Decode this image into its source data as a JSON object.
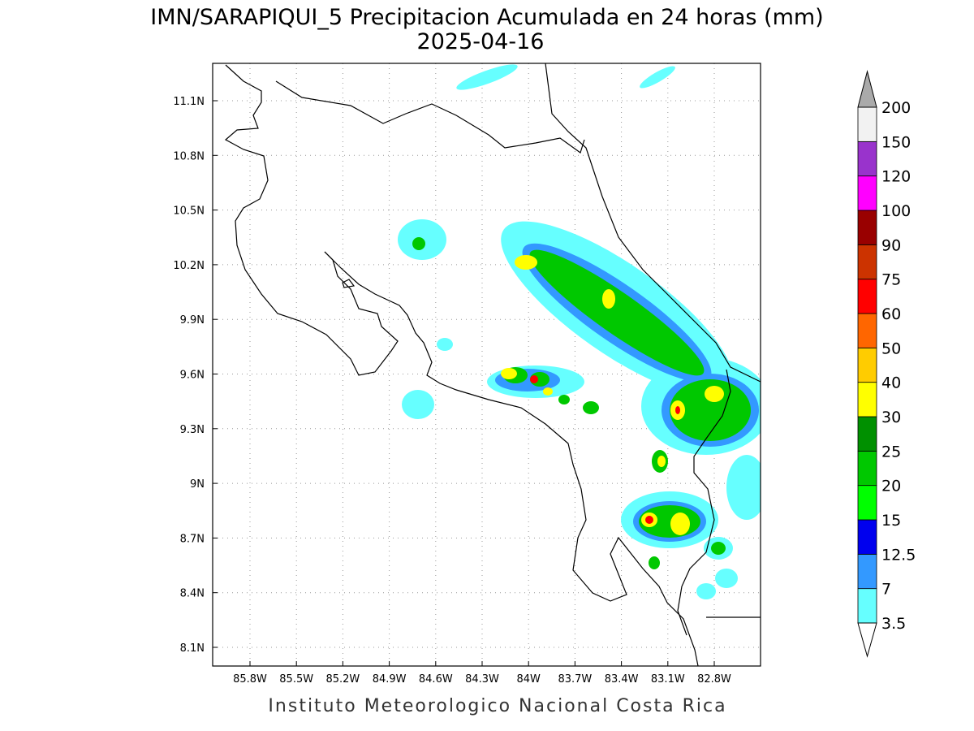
{
  "header": {
    "title": "IMN/SARAPIQUI_5 Precipitacion Acumulada en 24 horas (mm)",
    "date": "2025-04-16"
  },
  "map": {
    "lat_labels": [
      "11.1N",
      "10.8N",
      "10.5N",
      "10.2N",
      "9.9N",
      "9.6N",
      "9.3N",
      "9N",
      "8.7N",
      "8.4N",
      "8.1N"
    ],
    "lon_labels": [
      "85.8W",
      "85.5W",
      "85.2W",
      "84.9W",
      "84.6W",
      "84.3W",
      "84W",
      "83.7W",
      "83.4W",
      "83.1W",
      "82.8W"
    ]
  },
  "colorbar": {
    "levels": [
      3.5,
      7,
      12.5,
      15,
      20,
      25,
      30,
      40,
      50,
      60,
      75,
      90,
      100,
      120,
      150,
      200
    ],
    "colors": [
      "#66ffff",
      "#3399ff",
      "#0000ee",
      "#00ff00",
      "#00c800",
      "#009000",
      "#ffff00",
      "#ffcc00",
      "#ff6600",
      "#ff0000",
      "#cc3300",
      "#990000",
      "#ff00ff",
      "#9933cc",
      "#f2f2f2"
    ],
    "under_color": "#ffffff",
    "over_color": "#aaaaaa"
  },
  "footer": "Instituto Meteorologico Nacional Costa Rica"
}
